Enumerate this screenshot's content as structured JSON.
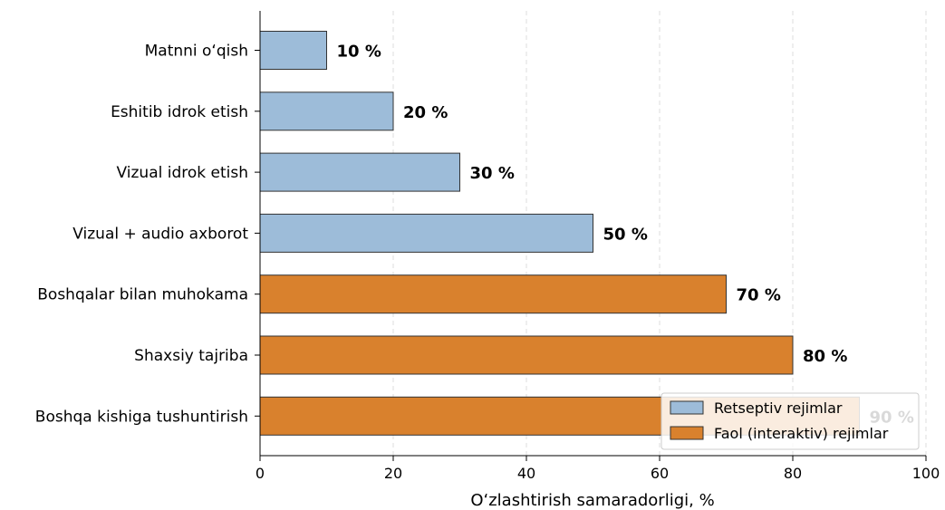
{
  "chart_data": {
    "type": "bar",
    "orientation": "horizontal",
    "categories": [
      "Matnni o‘qish",
      "Eshitib idrok etish",
      "Vizual idrok etish",
      "Vizual + audio axborot",
      "Boshqalar bilan muhokama",
      "Shaxsiy tajriba",
      "Boshqa kishiga tushuntirish"
    ],
    "values": [
      10,
      20,
      30,
      50,
      70,
      80,
      90
    ],
    "value_labels": [
      "10 %",
      "20 %",
      "30 %",
      "50 %",
      "70 %",
      "80 %",
      "90 %"
    ],
    "groups": [
      "Retseptiv rejimlar",
      "Retseptiv rejimlar",
      "Retseptiv rejimlar",
      "Retseptiv rejimlar",
      "Faol (interaktiv) rejimlar",
      "Faol (interaktiv) rejimlar",
      "Faol (interaktiv) rejimlar"
    ],
    "series": [
      {
        "name": "Retseptiv rejimlar",
        "color": "#9dbcd9"
      },
      {
        "name": "Faol (interaktiv) rejimlar",
        "color": "#d9812d"
      }
    ],
    "xlabel": "O‘zlashtirish samaradorligi, %",
    "xlim": [
      0,
      100
    ],
    "xticks": [
      0,
      20,
      40,
      60,
      80,
      100
    ],
    "grid": "vertical dashed",
    "legend_position": "bottom-right"
  }
}
